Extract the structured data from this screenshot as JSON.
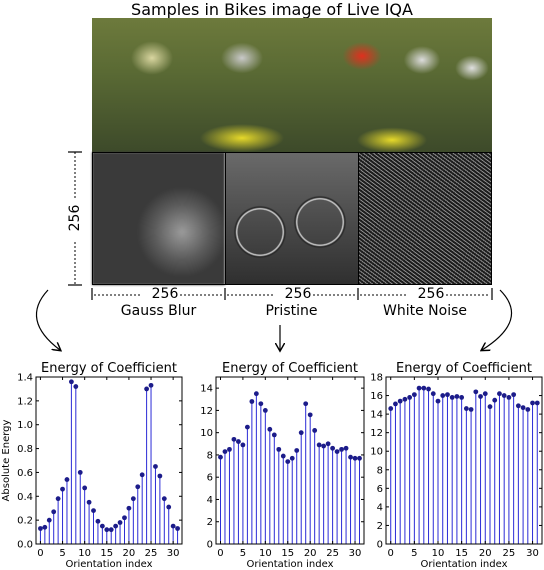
{
  "figure": {
    "title": "Samples in Bikes image of Live IQA",
    "size_label": "256",
    "panel_labels": [
      "Gauss Blur",
      "Pristine",
      "White Noise"
    ]
  },
  "chart_data": [
    {
      "type": "stem",
      "title": "Energy of Coefficient",
      "xlabel": "Orientation index",
      "ylabel": "Absolute Energy",
      "xlim": [
        -1,
        32
      ],
      "ylim": [
        0,
        1.4
      ],
      "xticks": [
        0,
        5,
        10,
        15,
        20,
        25,
        30
      ],
      "yticks": [
        0.0,
        0.2,
        0.4,
        0.6,
        0.8,
        1.0,
        1.2,
        1.4
      ],
      "x": [
        0,
        1,
        2,
        3,
        4,
        5,
        6,
        7,
        8,
        9,
        10,
        11,
        12,
        13,
        14,
        15,
        16,
        17,
        18,
        19,
        20,
        21,
        22,
        23,
        24,
        25,
        26,
        27,
        28,
        29,
        30,
        31
      ],
      "values": [
        0.13,
        0.14,
        0.2,
        0.27,
        0.38,
        0.46,
        0.54,
        1.36,
        1.32,
        0.6,
        0.47,
        0.35,
        0.28,
        0.19,
        0.15,
        0.12,
        0.12,
        0.15,
        0.18,
        0.22,
        0.3,
        0.38,
        0.48,
        0.58,
        1.3,
        1.33,
        0.65,
        0.57,
        0.38,
        0.31,
        0.15,
        0.13
      ]
    },
    {
      "type": "stem",
      "title": "Energy of Coefficient",
      "xlabel": "Orientation index",
      "ylabel": "",
      "xlim": [
        -1,
        32
      ],
      "ylim": [
        0,
        15
      ],
      "xticks": [
        0,
        5,
        10,
        15,
        20,
        25,
        30
      ],
      "yticks": [
        0,
        2,
        4,
        6,
        8,
        10,
        12,
        14
      ],
      "x": [
        0,
        1,
        2,
        3,
        4,
        5,
        6,
        7,
        8,
        9,
        10,
        11,
        12,
        13,
        14,
        15,
        16,
        17,
        18,
        19,
        20,
        21,
        22,
        23,
        24,
        25,
        26,
        27,
        28,
        29,
        30,
        31
      ],
      "values": [
        7.8,
        8.3,
        8.5,
        9.4,
        9.2,
        8.9,
        10.5,
        12.8,
        13.5,
        12.6,
        12.0,
        10.3,
        9.8,
        8.5,
        7.9,
        7.4,
        7.7,
        8.4,
        10.0,
        12.6,
        11.6,
        10.2,
        8.9,
        8.8,
        9.0,
        8.6,
        8.3,
        8.5,
        8.6,
        7.8,
        7.7,
        7.7
      ]
    },
    {
      "type": "stem",
      "title": "Energy of Coefficient",
      "xlabel": "Orientation index",
      "ylabel": "",
      "xlim": [
        -1,
        32
      ],
      "ylim": [
        0,
        18
      ],
      "xticks": [
        0,
        5,
        10,
        15,
        20,
        25,
        30
      ],
      "yticks": [
        0,
        2,
        4,
        6,
        8,
        10,
        12,
        14,
        16,
        18
      ],
      "x": [
        0,
        1,
        2,
        3,
        4,
        5,
        6,
        7,
        8,
        9,
        10,
        11,
        12,
        13,
        14,
        15,
        16,
        17,
        18,
        19,
        20,
        21,
        22,
        23,
        24,
        25,
        26,
        27,
        28,
        29,
        30,
        31
      ],
      "values": [
        14.6,
        15.1,
        15.4,
        15.6,
        15.8,
        16.1,
        16.8,
        16.8,
        16.7,
        16.2,
        15.4,
        16.0,
        16.1,
        15.8,
        15.9,
        15.8,
        14.6,
        14.5,
        16.4,
        15.9,
        16.2,
        14.8,
        15.5,
        16.2,
        16.0,
        15.8,
        16.1,
        14.9,
        14.7,
        14.5,
        15.2,
        15.2
      ]
    }
  ]
}
